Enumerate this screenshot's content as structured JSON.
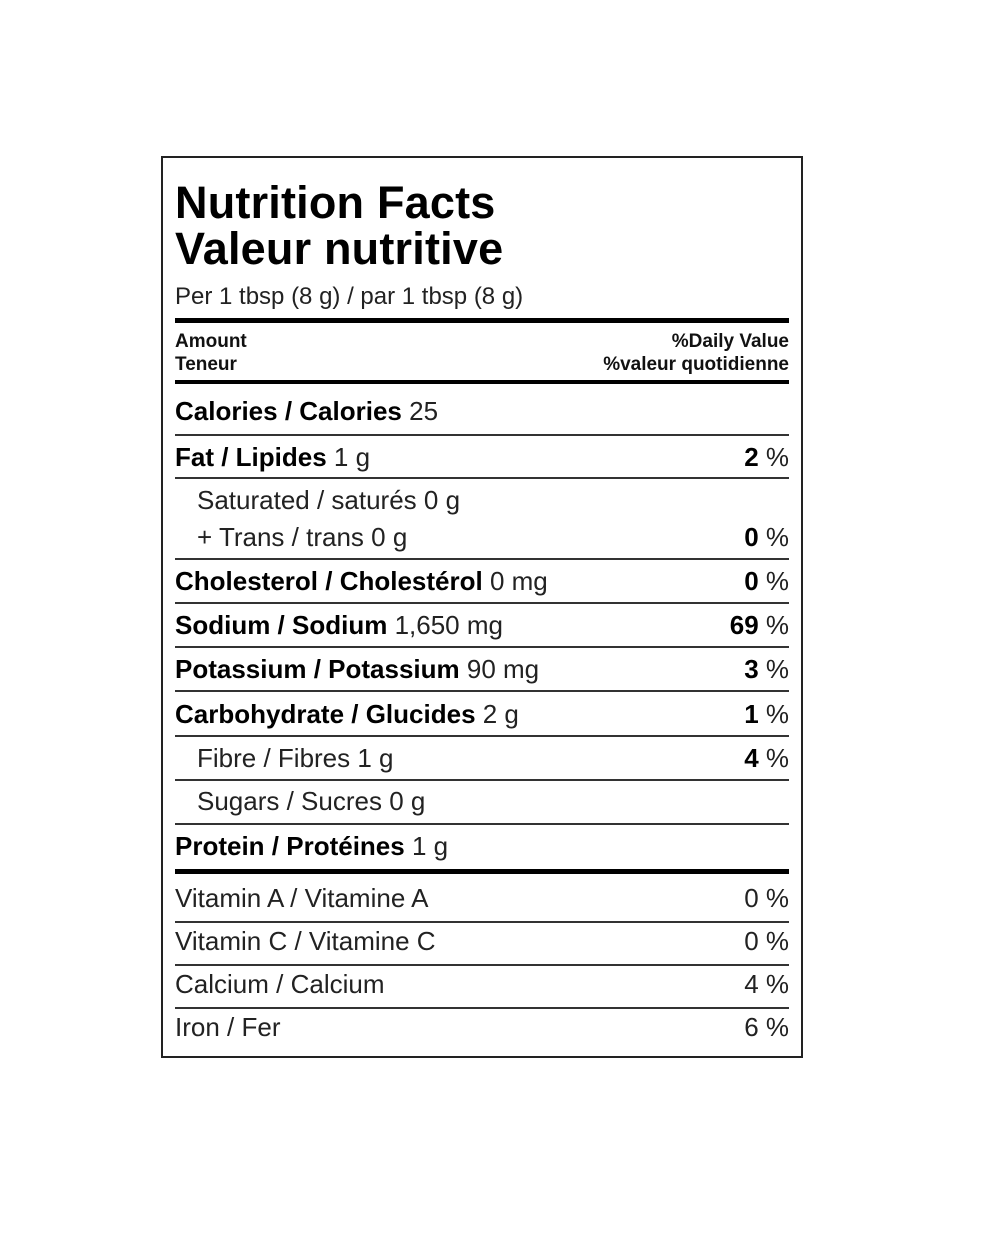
{
  "title_en": "Nutrition Facts",
  "title_fr": "Valeur nutritive",
  "serving": "Per 1 tbsp (8 g) / par 1 tbsp (8 g)",
  "header": {
    "amount_en": "Amount",
    "amount_fr": "Teneur",
    "dv_en": "%Daily Value",
    "dv_fr": "%valeur quotidienne"
  },
  "calories": {
    "name": "Calories / Calories",
    "amount": "25"
  },
  "fat": {
    "name": "Fat / Lipides",
    "amount": "1 g",
    "dv_value": "2",
    "dv_unit": " %"
  },
  "saturated": {
    "text": "Saturated / saturés 0 g"
  },
  "trans": {
    "text": "+ Trans / trans 0 g",
    "dv_value": "0",
    "dv_unit": " %"
  },
  "cholesterol": {
    "name": "Cholesterol / Cholestérol",
    "amount": "0 mg",
    "dv_value": "0",
    "dv_unit": " %"
  },
  "sodium": {
    "name": "Sodium / Sodium",
    "amount": "1,650 mg",
    "dv_value": "69",
    "dv_unit": " %"
  },
  "potassium": {
    "name": "Potassium / Potassium",
    "amount": "90 mg",
    "dv_value": "3",
    "dv_unit": " %"
  },
  "carbohydrate": {
    "name": "Carbohydrate / Glucides",
    "amount": "2 g",
    "dv_value": "1",
    "dv_unit": " %"
  },
  "fibre": {
    "text": "Fibre / Fibres 1 g",
    "dv_value": "4",
    "dv_unit": " %"
  },
  "sugars": {
    "text": "Sugars / Sucres 0 g"
  },
  "protein": {
    "name": "Protein / Protéines",
    "amount": "1 g"
  },
  "vitamins": [
    {
      "name": "Vitamin A / Vitamine A",
      "dv": "0 %"
    },
    {
      "name": "Vitamin C / Vitamine C",
      "dv": "0 %"
    },
    {
      "name": "Calcium / Calcium",
      "dv": "4 %"
    },
    {
      "name": "Iron / Fer",
      "dv": "6 %"
    }
  ]
}
